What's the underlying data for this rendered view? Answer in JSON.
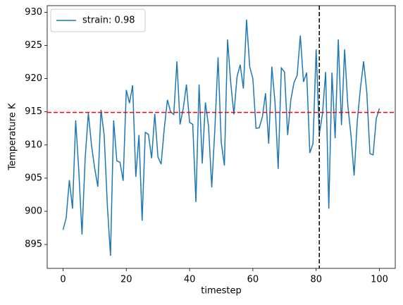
{
  "chart_data": {
    "type": "line",
    "xlabel": "timestep",
    "ylabel": "Temperature K",
    "x": [
      0,
      1,
      2,
      3,
      4,
      5,
      6,
      7,
      8,
      9,
      10,
      11,
      12,
      13,
      14,
      15,
      16,
      17,
      18,
      19,
      20,
      21,
      22,
      23,
      24,
      25,
      26,
      27,
      28,
      29,
      30,
      31,
      32,
      33,
      34,
      35,
      36,
      37,
      38,
      39,
      40,
      41,
      42,
      43,
      44,
      45,
      46,
      47,
      48,
      49,
      50,
      51,
      52,
      53,
      54,
      55,
      56,
      57,
      58,
      59,
      60,
      61,
      62,
      63,
      64,
      65,
      66,
      67,
      68,
      69,
      70,
      71,
      72,
      73,
      74,
      75,
      76,
      77,
      78,
      79,
      80,
      81,
      82,
      83,
      84,
      85,
      86,
      87,
      88,
      89,
      90,
      91,
      92,
      93,
      94,
      95,
      96,
      97,
      98,
      99,
      100
    ],
    "series": [
      {
        "name": "strain: 0.98",
        "color": "#1f77b4",
        "values": [
          897.2,
          899,
          904.7,
          900.4,
          913.7,
          906,
          896.5,
          908,
          914.8,
          910,
          906.5,
          903.7,
          915.3,
          911.5,
          901,
          893.3,
          913.7,
          907.6,
          907.4,
          904.6,
          918.3,
          916.3,
          919,
          905.2,
          911.5,
          898.6,
          911.9,
          911.6,
          908,
          914.7,
          908.2,
          907.1,
          912.5,
          916.8,
          915,
          914.6,
          922.6,
          913.1,
          915.5,
          919.1,
          913.4,
          913.1,
          901.4,
          919.1,
          907.2,
          916.4,
          912.8,
          903.6,
          912.5,
          923.2,
          910.4,
          906.9,
          925.9,
          919.4,
          914.6,
          920.3,
          922.1,
          918.5,
          928.9,
          921.8,
          920,
          912.5,
          912.6,
          914.2,
          917.8,
          910.2,
          921.8,
          916.4,
          906.4,
          921.6,
          921,
          911.5,
          916.8,
          919.4,
          920.5,
          926.5,
          919.5,
          920.9,
          908.8,
          910.2,
          924.4,
          911.6,
          914.7,
          921,
          900.4,
          920.9,
          911,
          925.9,
          913,
          924.4,
          916,
          911.5,
          905.4,
          913.6,
          918.6,
          922.6,
          918,
          908.7,
          908.5,
          914,
          915.5
        ]
      }
    ],
    "hline": 914.9,
    "hline_color": "#ff0000",
    "vline": 81,
    "vline_color": "#000000",
    "xlim": [
      -5,
      105
    ],
    "ylim": [
      891.4,
      931
    ],
    "xticks": [
      0,
      20,
      40,
      60,
      80,
      100
    ],
    "yticks": [
      895,
      900,
      905,
      910,
      915,
      920,
      925,
      930
    ],
    "legend": "upper left"
  }
}
